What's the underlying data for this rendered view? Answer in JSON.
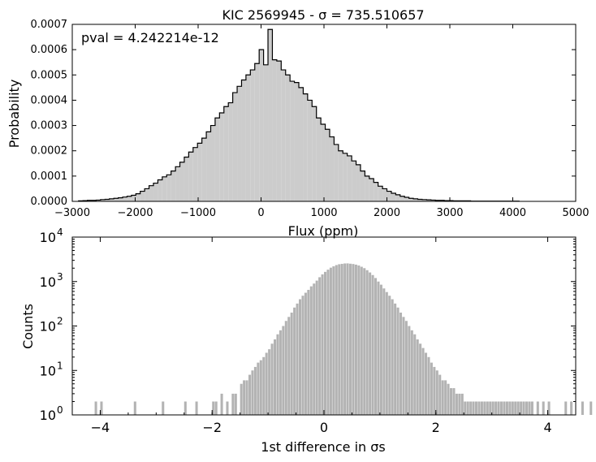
{
  "chart_data": [
    {
      "type": "histogram",
      "title": "KIC 2569945 - σ = 735.510657",
      "annotation": "pval = 4.242214e-12",
      "xlabel": "Flux (ppm)",
      "ylabel": "Probability",
      "xlim": [
        -3000,
        5000
      ],
      "ylim": [
        0,
        0.0007
      ],
      "xticks": [
        "−3000",
        "−2000",
        "−1000",
        "0",
        "1000",
        "2000",
        "3000",
        "4000",
        "5000"
      ],
      "yticks": [
        "0.0000",
        "0.0001",
        "0.0002",
        "0.0003",
        "0.0004",
        "0.0005",
        "0.0006",
        "0.0007"
      ],
      "bin_edges_start": -2900,
      "bin_width": 70,
      "values": [
        2e-06,
        3e-06,
        4e-06,
        4e-06,
        5e-06,
        7e-06,
        8e-06,
        1e-05,
        1.2e-05,
        1.4e-05,
        1.7e-05,
        2e-05,
        2.4e-05,
        3e-05,
        4e-05,
        5e-05,
        6.2e-05,
        7.2e-05,
        8.5e-05,
        9.7e-05,
        0.000105,
        0.00012,
        0.000137,
        0.000155,
        0.000175,
        0.000195,
        0.000213,
        0.00023,
        0.00025,
        0.000275,
        0.0003,
        0.00033,
        0.00035,
        0.000375,
        0.00039,
        0.00043,
        0.000455,
        0.00048,
        0.0005,
        0.00052,
        0.000545,
        0.0006,
        0.00054,
        0.00068,
        0.00056,
        0.000555,
        0.00052,
        0.0005,
        0.000475,
        0.00047,
        0.00045,
        0.000425,
        0.0004,
        0.000375,
        0.00033,
        0.000305,
        0.000285,
        0.000255,
        0.000225,
        0.0002,
        0.00019,
        0.00018,
        0.00016,
        0.000145,
        0.00012,
        0.0001,
        9e-05,
        7.5e-05,
        6e-05,
        5e-05,
        4e-05,
        3.2e-05,
        2.6e-05,
        2e-05,
        1.6e-05,
        1.2e-05,
        1e-05,
        8e-06,
        7e-06,
        6e-06,
        5e-06,
        4e-06,
        4e-06,
        3e-06,
        3e-06,
        2e-06,
        2e-06,
        2e-06,
        2e-06,
        1e-06,
        1e-06,
        1e-06,
        1e-06,
        1e-06,
        1e-06,
        1e-06,
        1e-06,
        1e-06,
        1e-06,
        1e-06
      ],
      "fill_color": "#cccccc",
      "edge_color": "#000000"
    },
    {
      "type": "histogram",
      "xlabel": "1st difference in σs",
      "ylabel": "Counts",
      "y_scale": "log",
      "xlim": [
        -4.5,
        4.5
      ],
      "ylim": [
        1,
        10000
      ],
      "xticks": [
        "−4",
        "−2",
        "0",
        "2",
        "4"
      ],
      "x_tick_values": [
        -4,
        -2,
        0,
        2,
        4
      ],
      "yticks": [
        "10^0",
        "10^1",
        "10^2",
        "10^3",
        "10^4"
      ],
      "bin_edges_start": -4.5,
      "bin_width": 0.05,
      "bin_indices": [
        8,
        10,
        22,
        32,
        40,
        44,
        50,
        51,
        53,
        55,
        57,
        58,
        60,
        61,
        62,
        63,
        64,
        65,
        66,
        67,
        68,
        69,
        70,
        71,
        72,
        73,
        74,
        75,
        76,
        77,
        78,
        79,
        80,
        81,
        82,
        83,
        84,
        85,
        86,
        87,
        88,
        89,
        90,
        91,
        92,
        93,
        94,
        95,
        96,
        97,
        98,
        99,
        100,
        101,
        102,
        103,
        104,
        105,
        106,
        107,
        108,
        109,
        110,
        111,
        112,
        113,
        114,
        115,
        116,
        117,
        118,
        119,
        120,
        121,
        122,
        123,
        124,
        125,
        126,
        127,
        128,
        129,
        130,
        131,
        132,
        133,
        134,
        135,
        136,
        137,
        138,
        139,
        140,
        141,
        142,
        143,
        144,
        145,
        146,
        147,
        148,
        149,
        150,
        151,
        152,
        153,
        154,
        155,
        156,
        157,
        158,
        159,
        160,
        161,
        162,
        163,
        164,
        166,
        168,
        170,
        176,
        178,
        182,
        185
      ],
      "counts": [
        2,
        2,
        2,
        2,
        2,
        2,
        2,
        2,
        3,
        2,
        3,
        3,
        5,
        6,
        6,
        8,
        10,
        12,
        15,
        17,
        20,
        25,
        30,
        40,
        50,
        65,
        80,
        100,
        130,
        160,
        200,
        260,
        320,
        400,
        480,
        560,
        650,
        780,
        900,
        1050,
        1250,
        1450,
        1650,
        1850,
        2050,
        2200,
        2350,
        2450,
        2500,
        2550,
        2560,
        2520,
        2480,
        2400,
        2300,
        2150,
        2000,
        1800,
        1600,
        1400,
        1200,
        1000,
        850,
        700,
        580,
        480,
        400,
        320,
        260,
        200,
        160,
        130,
        100,
        80,
        65,
        50,
        40,
        32,
        25,
        20,
        15,
        12,
        10,
        8,
        6,
        6,
        5,
        4,
        4,
        3,
        3,
        3,
        2,
        2,
        2,
        2,
        2,
        2,
        2,
        2,
        2,
        2,
        2,
        2,
        2,
        2,
        2,
        2,
        2,
        2,
        2,
        2,
        2,
        2,
        2,
        2,
        2,
        2,
        2,
        2,
        2,
        2,
        2,
        2,
        2,
        2
      ],
      "fill_color": "#b3b3b3"
    }
  ]
}
